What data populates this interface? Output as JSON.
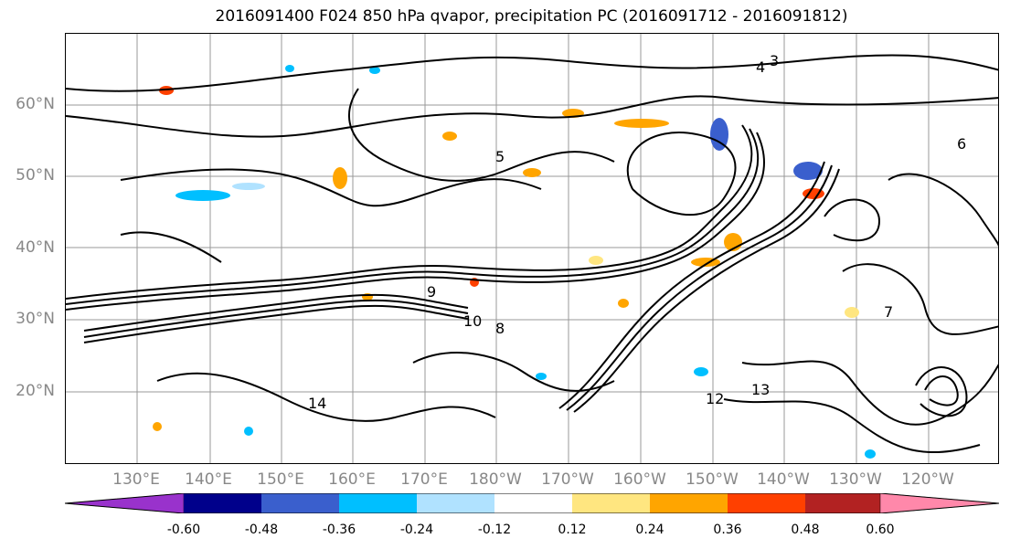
{
  "title": "2016091400 F024 850 hPa qvapor, precipitation PC (2016091712 - 2016091812)",
  "lat_labels": [
    "60°N",
    "50°N",
    "40°N",
    "30°N",
    "20°N"
  ],
  "lon_labels": [
    "130°E",
    "140°E",
    "150°E",
    "160°E",
    "170°E",
    "180°W",
    "170°W",
    "160°W",
    "150°W",
    "140°W",
    "130°W",
    "120°W"
  ],
  "contour_labels": [
    "3",
    "4",
    "5",
    "6",
    "7",
    "8",
    "9",
    "10",
    "12",
    "13",
    "14"
  ],
  "colorbar": {
    "ticks": [
      "-0.60",
      "-0.48",
      "-0.36",
      "-0.24",
      "-0.12",
      "0.12",
      "0.24",
      "0.36",
      "0.48",
      "0.60"
    ],
    "colors": [
      "#9932cc",
      "#00008b",
      "#3a5fcd",
      "#00bfff",
      "#b0e2ff",
      "#ffffff",
      "#ffe680",
      "#ffa500",
      "#ff4000",
      "#b22222",
      "#ff88aa"
    ]
  }
}
